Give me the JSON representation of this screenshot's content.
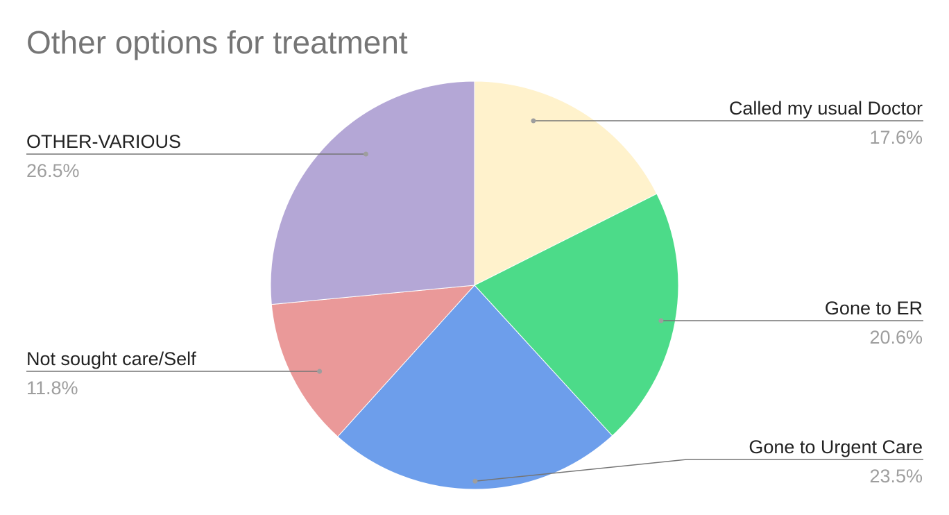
{
  "chart_data": {
    "type": "pie",
    "title": "Other options for treatment",
    "slices": [
      {
        "label": "Called my usual Doctor",
        "value": 17.6,
        "value_label": "17.6%",
        "color": "#fff2cc"
      },
      {
        "label": "Gone to ER",
        "value": 20.6,
        "value_label": "20.6%",
        "color": "#4cdb89"
      },
      {
        "label": "Gone to Urgent Care",
        "value": 23.5,
        "value_label": "23.5%",
        "color": "#6d9eeb"
      },
      {
        "label": "Not sought care/Self",
        "value": 11.8,
        "value_label": "11.8%",
        "color": "#ea9999"
      },
      {
        "label": "OTHER-VARIOUS",
        "value": 26.5,
        "value_label": "26.5%",
        "color": "#b4a7d6"
      }
    ],
    "legend": "none",
    "start_angle": "top",
    "direction": "clockwise"
  }
}
